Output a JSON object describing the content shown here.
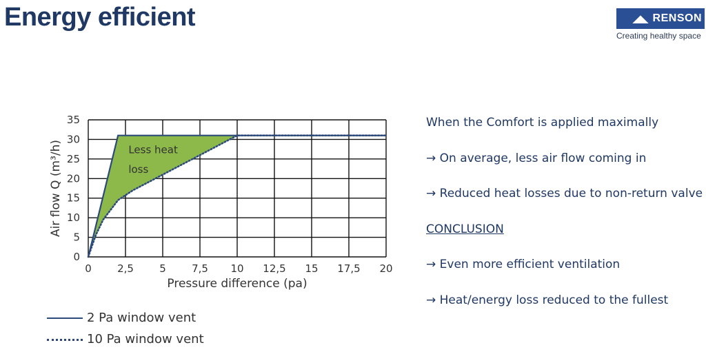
{
  "header": {
    "title": "Energy efficient",
    "logo_text": "RENSON",
    "logo_mark": "◢◣",
    "tagline": "Creating healthy space"
  },
  "chart_data": {
    "type": "line",
    "title": "",
    "xlabel": "Pressure difference (pa)",
    "ylabel": "Air flow Q (m³/h)",
    "xlim": [
      0,
      20
    ],
    "ylim": [
      0,
      35
    ],
    "xticks": [
      "0",
      "2,5",
      "5",
      "7,5",
      "10",
      "12,5",
      "15",
      "17,5",
      "20"
    ],
    "yticks": [
      "0",
      "5",
      "10",
      "15",
      "20",
      "25",
      "30",
      "35"
    ],
    "grid": true,
    "series": [
      {
        "name": "2 Pa window vent",
        "style": "solid",
        "color": "#2b4a7a",
        "x": [
          0,
          2,
          20
        ],
        "y": [
          0,
          31,
          31
        ]
      },
      {
        "name": "10 Pa window vent",
        "style": "dotted",
        "color": "#2b4a7a",
        "x": [
          0,
          0.5,
          1,
          2,
          3,
          4,
          5,
          6,
          7,
          8,
          9,
          10,
          20
        ],
        "y": [
          0,
          5.5,
          9.5,
          14.5,
          17,
          19,
          21,
          23,
          25,
          27,
          29,
          31,
          31
        ]
      }
    ],
    "shaded_region": {
      "label_lines": [
        "Less heat",
        "loss"
      ],
      "color": "#8db84a"
    },
    "legend_position": "bottom-left"
  },
  "notes": [
    {
      "text": "When the Comfort is applied maximally",
      "underline": false
    },
    {
      "text": "→ On average, less air flow coming in",
      "underline": false
    },
    {
      "text": "→ Reduced heat losses due to non-return valve",
      "underline": false
    },
    {
      "text": "CONCLUSION",
      "underline": true
    },
    {
      "text": "→ Even more efficient ventilation",
      "underline": false
    },
    {
      "text": "→ Heat/energy loss reduced to the fullest",
      "underline": false
    }
  ]
}
